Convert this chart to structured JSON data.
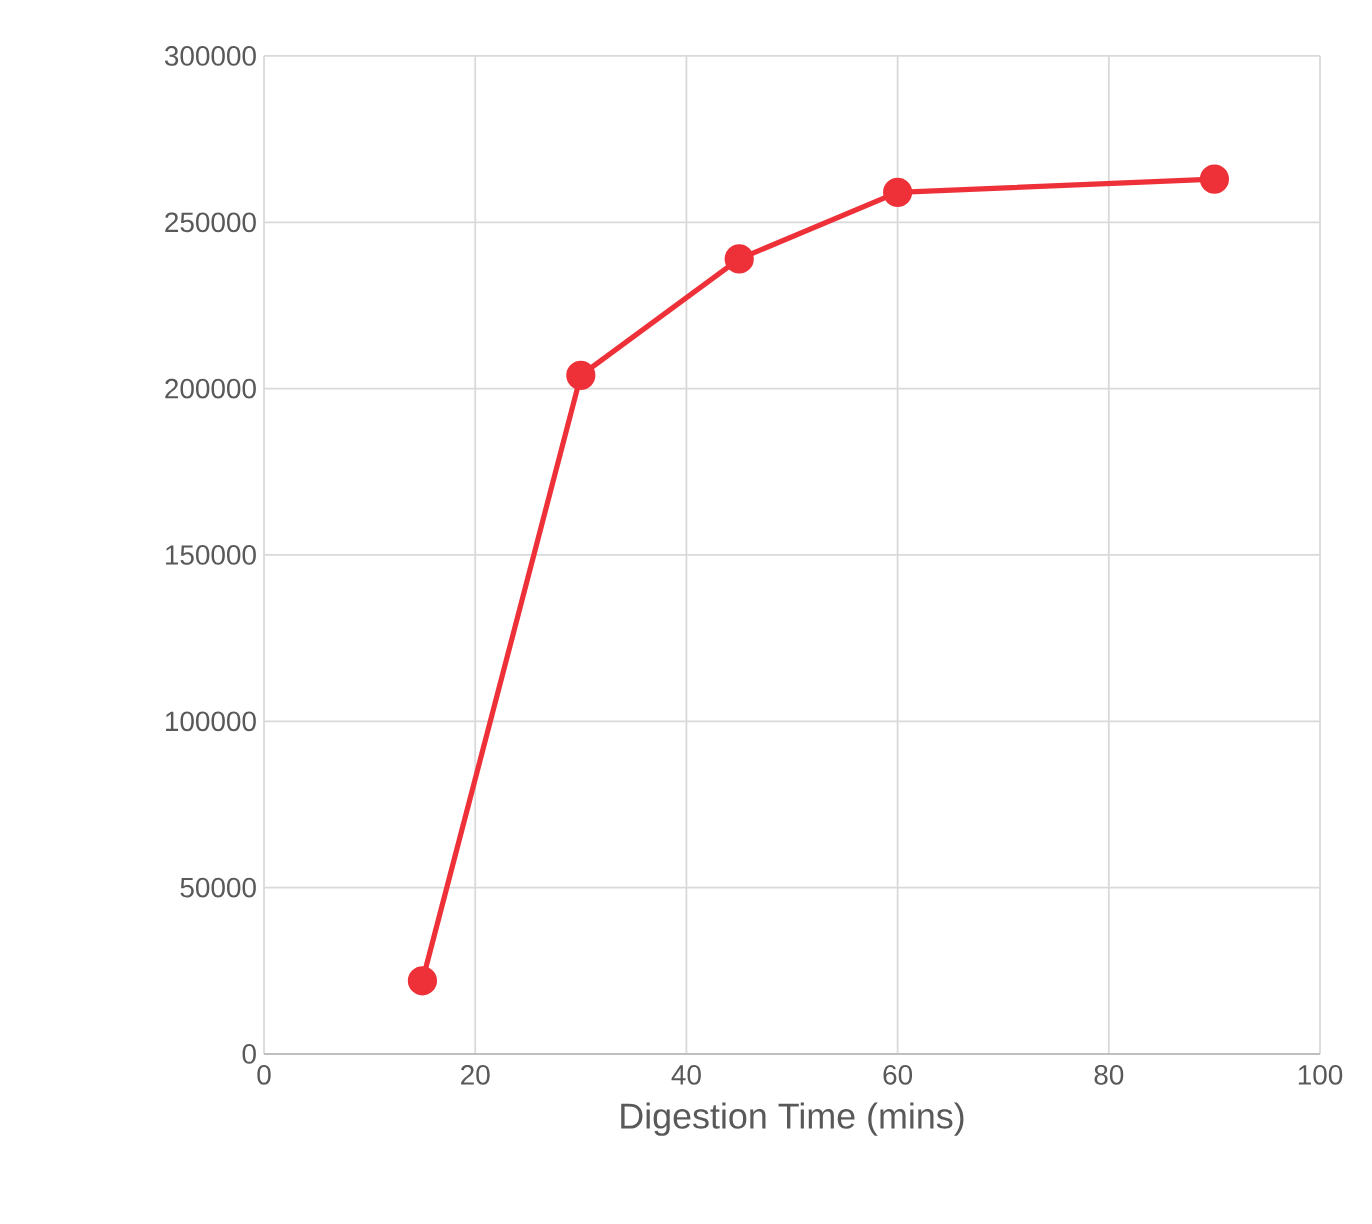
{
  "chart_data": {
    "type": "line",
    "xlabel": "Digestion Time (mins)",
    "x": [
      15,
      30,
      45,
      60,
      90
    ],
    "series": [
      {
        "color": "#ee3038",
        "values": [
          22000,
          204000,
          239000,
          259000,
          263000
        ]
      }
    ],
    "xlim": [
      0,
      100
    ],
    "xticks": [
      0,
      20,
      40,
      60,
      80,
      100
    ],
    "ylim": [
      0,
      300000
    ],
    "yticks": [
      0,
      50000,
      100000,
      150000,
      200000,
      250000,
      300000
    ],
    "grid": true,
    "marker": "circle",
    "line_style": "solid"
  }
}
